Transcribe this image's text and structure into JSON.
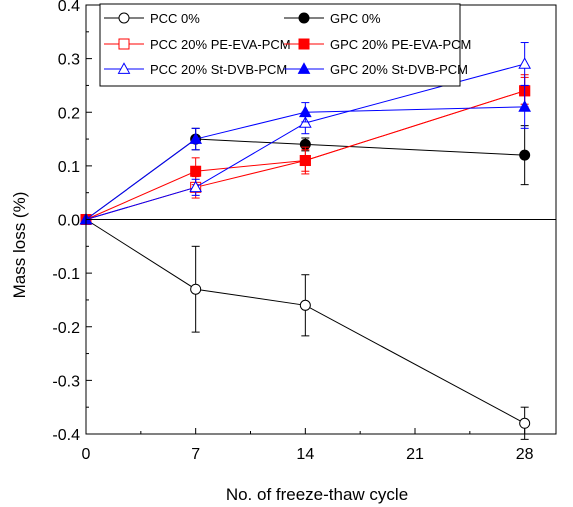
{
  "chart_data": {
    "type": "line",
    "title": "",
    "xlabel": "No. of  freeze-thaw cycle",
    "ylabel": "Mass loss (%)",
    "xlim": [
      0,
      30
    ],
    "ylim": [
      -0.4,
      0.4
    ],
    "xticks": [
      0,
      7,
      14,
      21,
      28
    ],
    "yticks": [
      -0.4,
      -0.3,
      -0.2,
      -0.1,
      0.0,
      0.1,
      0.2,
      0.3,
      0.4
    ],
    "ytick_labels": [
      "-0.4",
      "-0.3",
      "-0.2",
      "-0.1",
      "0.0",
      "0.1",
      "0.2",
      "0.3",
      "0.4"
    ],
    "zero_line": true,
    "grid": false,
    "legend": "top",
    "x": [
      0,
      7,
      14,
      28
    ],
    "series": [
      {
        "name": "PCC 0%",
        "color": "#000000",
        "marker": "circle",
        "filled": false,
        "values": [
          0,
          -0.13,
          -0.16,
          -0.38
        ],
        "errors": [
          0,
          0.08,
          0.057,
          0.03
        ]
      },
      {
        "name": "GPC 0%",
        "color": "#000000",
        "marker": "circle",
        "filled": true,
        "values": [
          0,
          0.15,
          0.14,
          0.12
        ],
        "errors": [
          0,
          0.02,
          0.012,
          0.055
        ]
      },
      {
        "name": "PCC 20% PE-EVA-PCM",
        "color": "#ff0000",
        "marker": "square",
        "filled": false,
        "values": [
          0,
          0.06,
          0.11,
          0.24
        ],
        "errors": [
          0,
          0.02,
          0.02,
          0.03
        ]
      },
      {
        "name": "GPC 20% PE-EVA-PCM",
        "color": "#ff0000",
        "marker": "square",
        "filled": true,
        "values": [
          0,
          0.09,
          0.11,
          0.24
        ],
        "errors": [
          0,
          0.025,
          0.025,
          0.025
        ]
      },
      {
        "name": "PCC 20% St-DVB-PCM",
        "color": "#0000ff",
        "marker": "triangle",
        "filled": false,
        "values": [
          0,
          0.06,
          0.18,
          0.29
        ],
        "errors": [
          0,
          0.015,
          0.02,
          0.04
        ]
      },
      {
        "name": "GPC 20% St-DVB-PCM",
        "color": "#0000ff",
        "marker": "triangle",
        "filled": true,
        "values": [
          0,
          0.15,
          0.2,
          0.21
        ],
        "errors": [
          0,
          0.02,
          0.018,
          0.04
        ]
      }
    ]
  }
}
